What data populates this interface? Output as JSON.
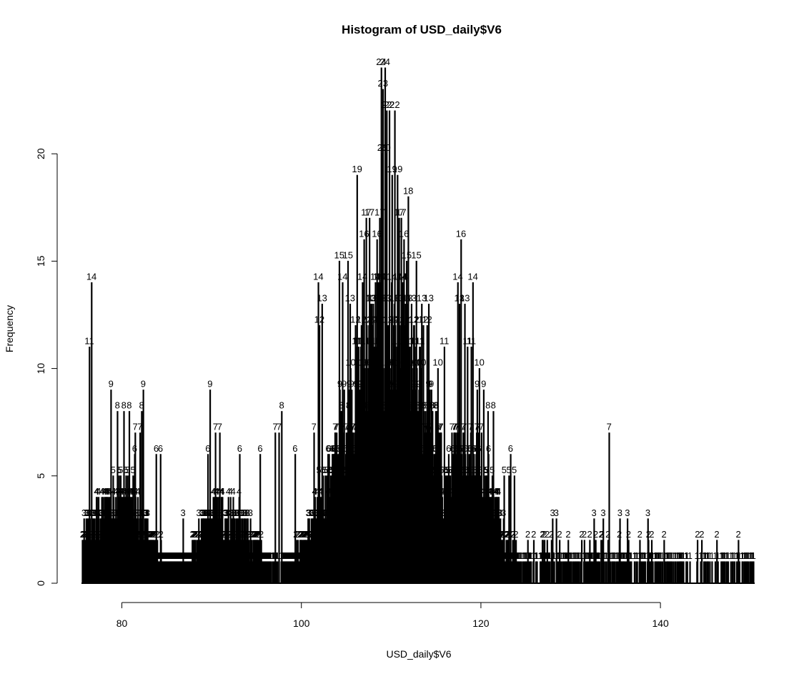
{
  "chart_data": {
    "type": "bar",
    "title": "Histogram of USD_daily$V6",
    "xlabel": "USD_daily$V6",
    "ylabel": "Frequency",
    "xlim": [
      75.5,
      150.5
    ],
    "ylim": [
      0,
      24
    ],
    "x_ticks": [
      80,
      100,
      120,
      140
    ],
    "y_ticks": [
      0,
      5,
      10,
      15,
      20
    ],
    "show_labels": true,
    "bar_color": "#000000",
    "peaks": [
      {
        "x": 76.6,
        "y": 14
      },
      {
        "x": 76.4,
        "y": 11
      },
      {
        "x": 78.8,
        "y": 9
      },
      {
        "x": 79.5,
        "y": 8
      },
      {
        "x": 80.2,
        "y": 8
      },
      {
        "x": 80.8,
        "y": 8
      },
      {
        "x": 82.4,
        "y": 9
      },
      {
        "x": 82.2,
        "y": 8
      },
      {
        "x": 81.5,
        "y": 7
      },
      {
        "x": 82.0,
        "y": 7
      },
      {
        "x": 81.4,
        "y": 6
      },
      {
        "x": 83.8,
        "y": 6
      },
      {
        "x": 84.3,
        "y": 6
      },
      {
        "x": 86.8,
        "y": 3
      },
      {
        "x": 89.8,
        "y": 9
      },
      {
        "x": 90.4,
        "y": 7
      },
      {
        "x": 90.9,
        "y": 7
      },
      {
        "x": 89.6,
        "y": 6
      },
      {
        "x": 93.1,
        "y": 6
      },
      {
        "x": 95.4,
        "y": 6
      },
      {
        "x": 97.1,
        "y": 7
      },
      {
        "x": 97.5,
        "y": 7
      },
      {
        "x": 97.8,
        "y": 8
      },
      {
        "x": 99.3,
        "y": 6
      },
      {
        "x": 101.4,
        "y": 7
      },
      {
        "x": 101.9,
        "y": 14
      },
      {
        "x": 102.3,
        "y": 13
      },
      {
        "x": 102.0,
        "y": 12
      },
      {
        "x": 104.2,
        "y": 15
      },
      {
        "x": 104.6,
        "y": 14
      },
      {
        "x": 105.2,
        "y": 15
      },
      {
        "x": 105.4,
        "y": 13
      },
      {
        "x": 106.2,
        "y": 19
      },
      {
        "x": 106.8,
        "y": 14
      },
      {
        "x": 107.2,
        "y": 17
      },
      {
        "x": 107.6,
        "y": 17
      },
      {
        "x": 107.0,
        "y": 16
      },
      {
        "x": 108.4,
        "y": 16
      },
      {
        "x": 108.7,
        "y": 17
      },
      {
        "x": 108.9,
        "y": 24
      },
      {
        "x": 109.3,
        "y": 24
      },
      {
        "x": 109.1,
        "y": 23
      },
      {
        "x": 109.5,
        "y": 22
      },
      {
        "x": 109.8,
        "y": 22
      },
      {
        "x": 110.4,
        "y": 22
      },
      {
        "x": 109.0,
        "y": 20
      },
      {
        "x": 109.4,
        "y": 20
      },
      {
        "x": 110.1,
        "y": 19
      },
      {
        "x": 110.7,
        "y": 19
      },
      {
        "x": 110.9,
        "y": 17
      },
      {
        "x": 111.1,
        "y": 17
      },
      {
        "x": 111.4,
        "y": 16
      },
      {
        "x": 111.9,
        "y": 18
      },
      {
        "x": 111.7,
        "y": 15
      },
      {
        "x": 112.8,
        "y": 15
      },
      {
        "x": 113.4,
        "y": 13
      },
      {
        "x": 114.2,
        "y": 13
      },
      {
        "x": 113.6,
        "y": 12
      },
      {
        "x": 114.0,
        "y": 12
      },
      {
        "x": 115.2,
        "y": 10
      },
      {
        "x": 115.9,
        "y": 11
      },
      {
        "x": 117.4,
        "y": 14
      },
      {
        "x": 117.6,
        "y": 13
      },
      {
        "x": 117.8,
        "y": 16
      },
      {
        "x": 118.2,
        "y": 13
      },
      {
        "x": 119.1,
        "y": 14
      },
      {
        "x": 118.9,
        "y": 11
      },
      {
        "x": 118.5,
        "y": 11
      },
      {
        "x": 119.8,
        "y": 10
      },
      {
        "x": 119.6,
        "y": 9
      },
      {
        "x": 120.3,
        "y": 9
      },
      {
        "x": 120.8,
        "y": 8
      },
      {
        "x": 121.4,
        "y": 8
      },
      {
        "x": 123.3,
        "y": 6
      },
      {
        "x": 122.6,
        "y": 5
      },
      {
        "x": 123.1,
        "y": 5
      },
      {
        "x": 123.7,
        "y": 5
      },
      {
        "x": 125.2,
        "y": 2
      },
      {
        "x": 127.1,
        "y": 2
      },
      {
        "x": 128.0,
        "y": 3
      },
      {
        "x": 128.4,
        "y": 3
      },
      {
        "x": 132.6,
        "y": 3
      },
      {
        "x": 133.6,
        "y": 3
      },
      {
        "x": 134.3,
        "y": 7
      },
      {
        "x": 135.5,
        "y": 3
      },
      {
        "x": 136.3,
        "y": 3
      },
      {
        "x": 138.6,
        "y": 3
      },
      {
        "x": 140.4,
        "y": 2
      },
      {
        "x": 144.1,
        "y": 2
      },
      {
        "x": 144.6,
        "y": 2
      },
      {
        "x": 146.3,
        "y": 2
      },
      {
        "x": 148.7,
        "y": 2
      },
      {
        "x": 150.0,
        "y": 1
      }
    ]
  }
}
